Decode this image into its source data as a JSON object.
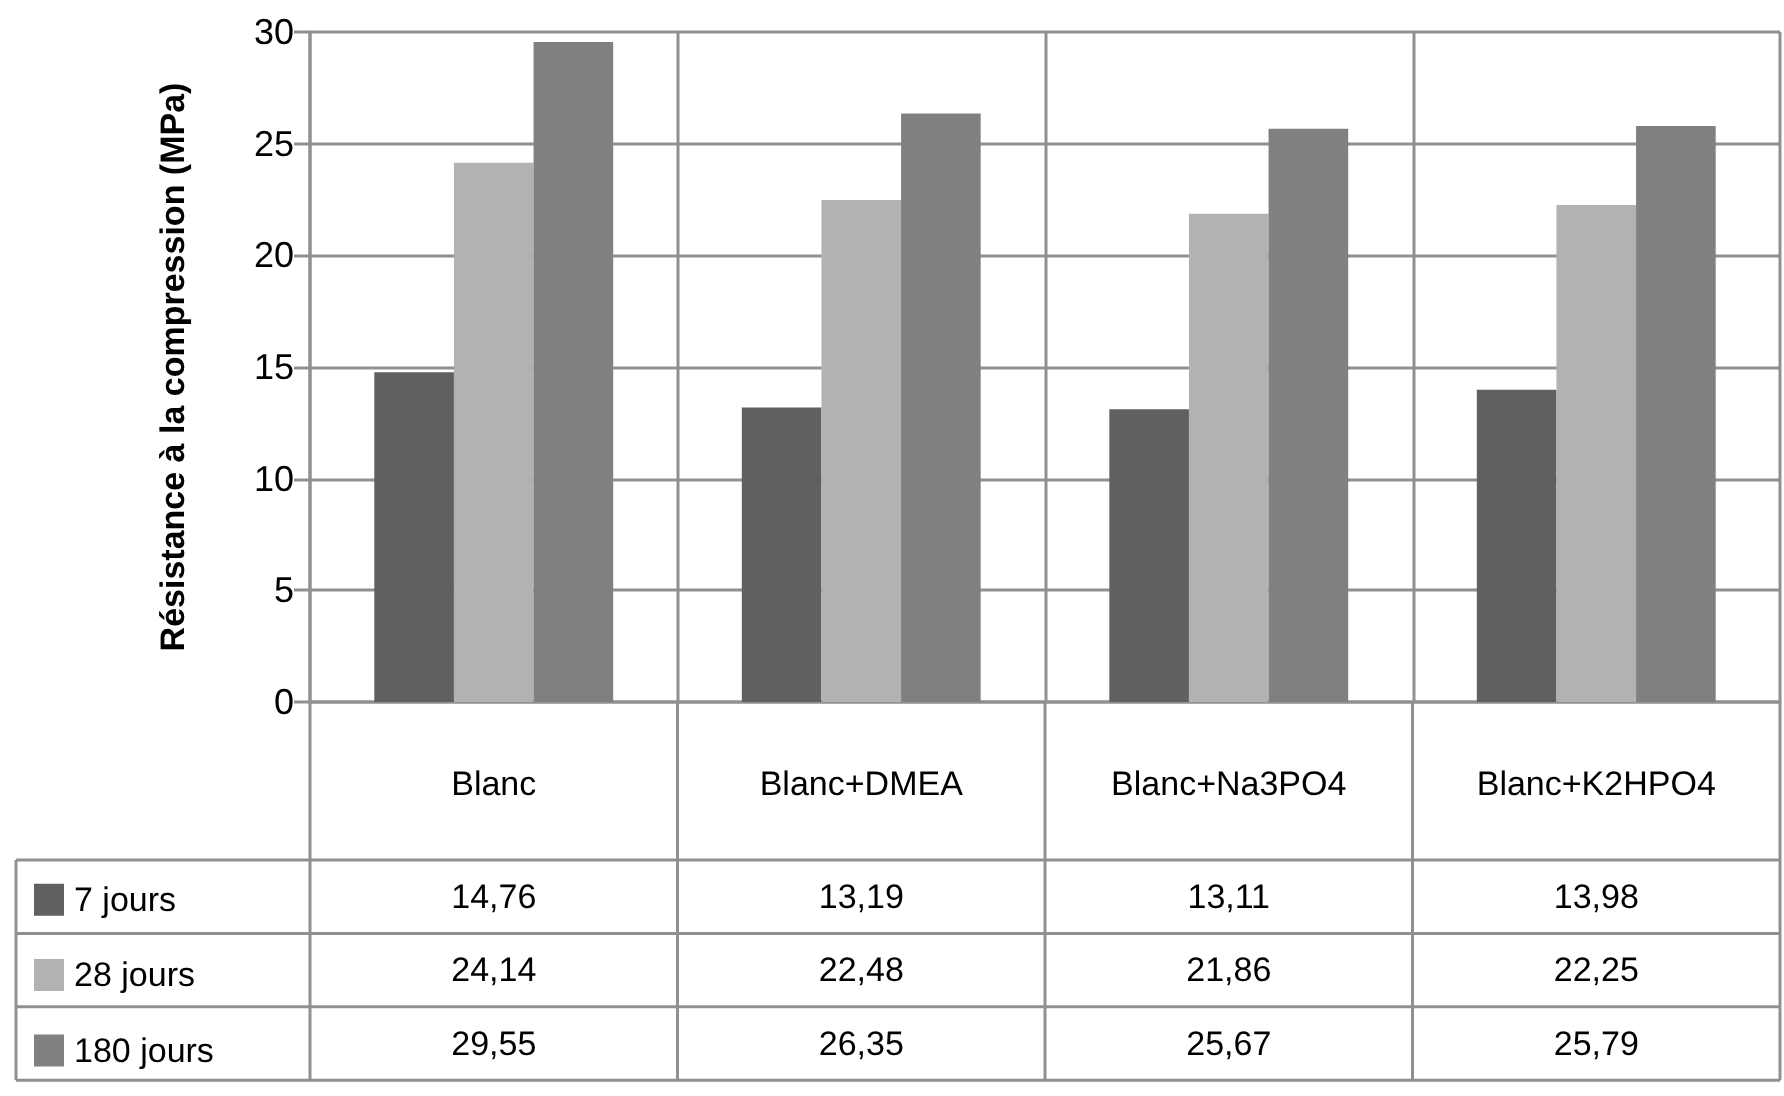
{
  "chart_data": {
    "type": "bar",
    "ylabel": "Résistance à la compression (MPa)",
    "categories": [
      "Blanc",
      "Blanc+DMEA",
      "Blanc+Na3PO4",
      "Blanc+K2HPO4"
    ],
    "series": [
      {
        "name": "7 jours",
        "color": "#606060",
        "values": [
          14.76,
          13.19,
          13.11,
          13.98
        ],
        "value_labels": [
          "14,76",
          "13,19",
          "13,11",
          "13,98"
        ]
      },
      {
        "name": "28 jours",
        "color": "#b2b2b2",
        "values": [
          24.14,
          22.48,
          21.86,
          22.25
        ],
        "value_labels": [
          "24,14",
          "22,48",
          "21,86",
          "22,25"
        ]
      },
      {
        "name": "180 jours",
        "color": "#808080",
        "values": [
          29.55,
          26.35,
          25.67,
          25.79
        ],
        "value_labels": [
          "29,55",
          "26,35",
          "25,67",
          "25,79"
        ]
      }
    ],
    "ylim": [
      0,
      30
    ],
    "yticks": [
      0,
      5,
      10,
      15,
      20,
      25,
      30
    ],
    "grid": true,
    "legend": "bottom"
  }
}
